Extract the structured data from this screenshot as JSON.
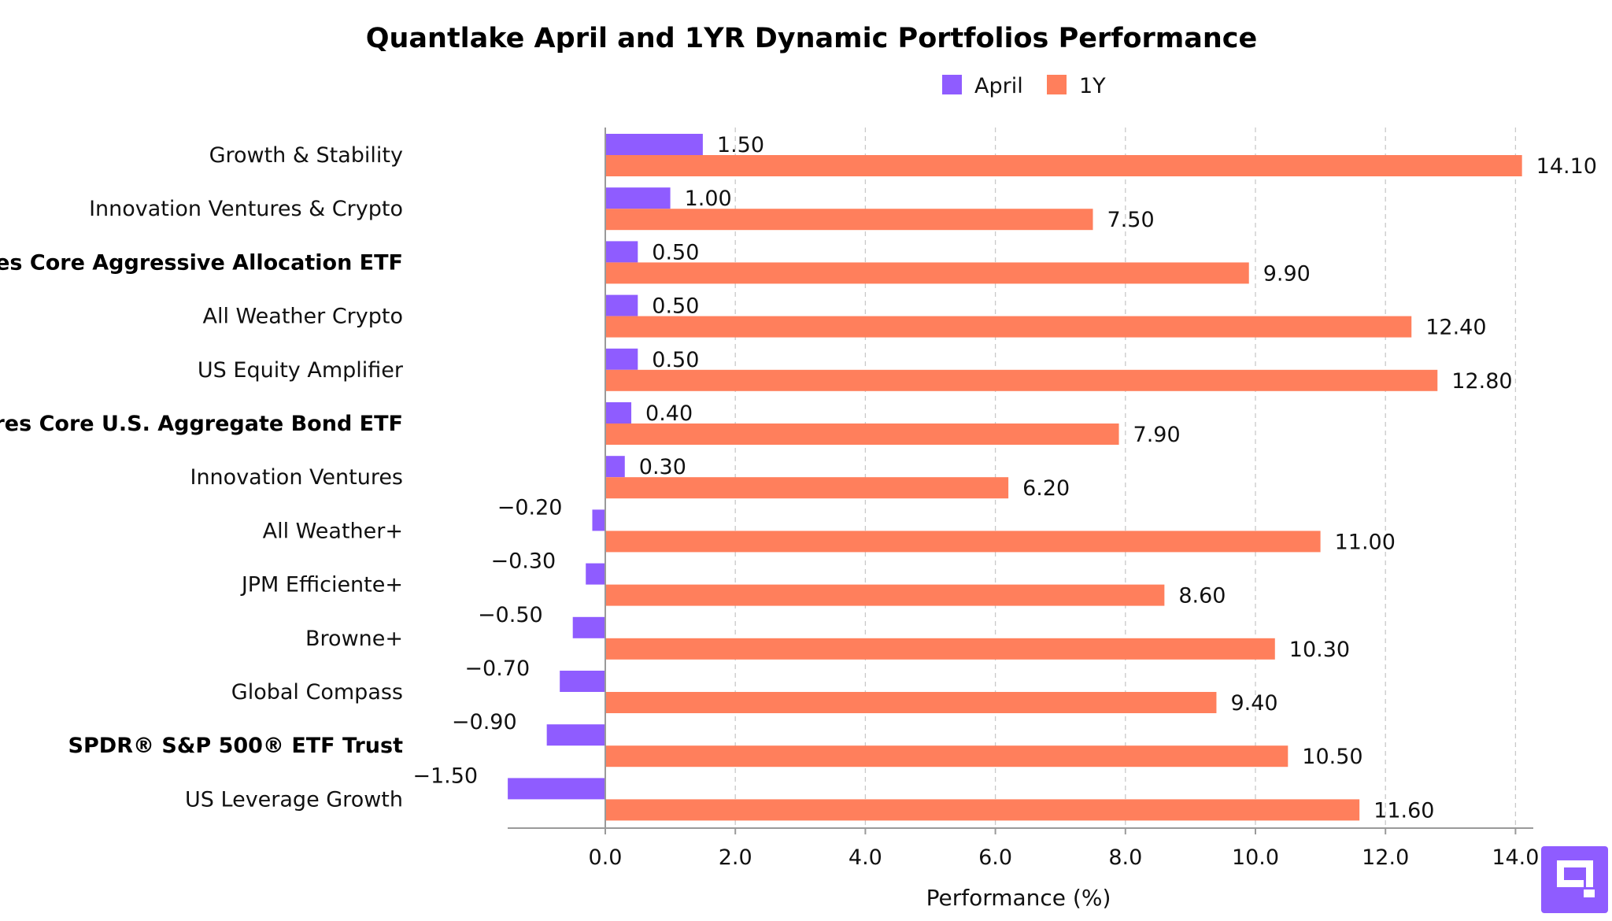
{
  "chart_data": {
    "type": "bar",
    "orientation": "horizontal",
    "title": "Quantlake April and 1YR Dynamic Portfolios Performance",
    "xlabel": "Performance (%)",
    "ylabel": "",
    "xlim": [
      -1.5,
      14.1
    ],
    "xticks": [
      0,
      2,
      4,
      6,
      8,
      10,
      12,
      14
    ],
    "xtick_labels": [
      "0.0",
      "2.0",
      "4.0",
      "6.0",
      "8.0",
      "10.0",
      "12.0",
      "14.0"
    ],
    "grid": "vertical dashed",
    "legend_position": "top-center",
    "categories": [
      "Growth & Stability",
      "Innovation Ventures & Crypto",
      "iShares Core Aggressive Allocation ETF",
      "All Weather Crypto",
      "US Equity Amplifier",
      "iShares Core U.S. Aggregate Bond ETF",
      "Innovation Ventures",
      "All Weather+",
      "JPM Efficiente+",
      "Browne+",
      "Global Compass",
      "SPDR® S&P 500® ETF Trust",
      "US Leverage Growth"
    ],
    "bold_categories": [
      "iShares Core Aggressive Allocation ETF",
      "iShares Core U.S. Aggregate Bond ETF",
      "SPDR® S&P 500® ETF Trust"
    ],
    "series": [
      {
        "name": "April",
        "color": "#8f5cff",
        "values": [
          1.5,
          1.0,
          0.5,
          0.5,
          0.5,
          0.4,
          0.3,
          -0.2,
          -0.3,
          -0.5,
          -0.7,
          -0.9,
          -1.5
        ],
        "labels": [
          "1.50",
          "1.00",
          "0.50",
          "0.50",
          "0.50",
          "0.40",
          "0.30",
          "−0.20",
          "−0.30",
          "−0.50",
          "−0.70",
          "−0.90",
          "−1.50"
        ]
      },
      {
        "name": "1Y",
        "color": "#ff7f5c",
        "values": [
          14.1,
          7.5,
          9.9,
          12.4,
          12.8,
          7.9,
          6.2,
          11.0,
          8.6,
          10.3,
          9.4,
          10.5,
          11.6
        ],
        "labels": [
          "14.10",
          "7.50",
          "9.90",
          "12.40",
          "12.80",
          "7.90",
          "6.20",
          "11.00",
          "8.60",
          "10.30",
          "9.40",
          "10.50",
          "11.60"
        ]
      }
    ]
  },
  "logo": {
    "name": "quantlake-logo",
    "color": "#8f5cff"
  }
}
